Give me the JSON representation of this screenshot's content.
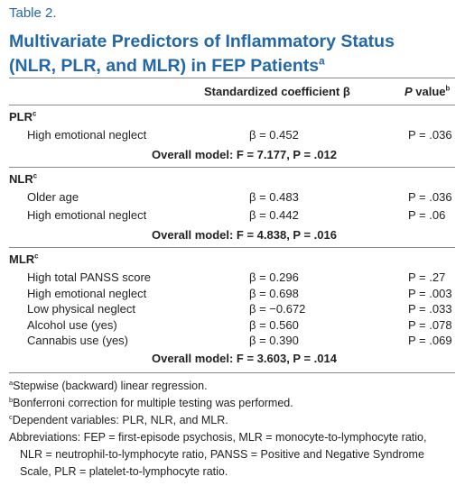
{
  "header": {
    "label": "Table 2.",
    "title": "Multivariate Predictors of Inflammatory Status (NLR, PLR, and MLR) in FEP Patients",
    "title_sup": "a"
  },
  "table": {
    "columns": [
      {
        "text": "Standardized coefficient β"
      },
      {
        "lead": "P",
        "text": "value",
        "sup": "b"
      }
    ],
    "sections": [
      {
        "name": "PLR",
        "sup": "c",
        "rows": [
          {
            "label": "High emotional neglect",
            "beta": "β = 0.452",
            "p": "P = .036"
          }
        ],
        "overall": "Overall model: F = 7.177, P = .012"
      },
      {
        "name": "NLR",
        "sup": "c",
        "rows": [
          {
            "label": "Older age",
            "beta": "β = 0.483",
            "p": "P = .036"
          },
          {
            "label": "High emotional neglect",
            "beta": "β = 0.442",
            "p": "P = .06"
          }
        ],
        "overall": "Overall model: F = 4.838, P = .016"
      },
      {
        "name": "MLR",
        "sup": "c",
        "rows": [
          {
            "label": "High total PANSS score",
            "beta": "β = 0.296",
            "p": "P = .27"
          },
          {
            "label": "High emotional neglect",
            "beta": "β = 0.698",
            "p": "P = .003"
          },
          {
            "label": "Low physical neglect",
            "beta": "β = −0.672",
            "p": "P = .033"
          },
          {
            "label": "Alcohol use (yes)",
            "beta": "β = 0.560",
            "p": "P = .078"
          },
          {
            "label": "Cannabis use (yes)",
            "beta": "β = 0.390",
            "p": "P = .069"
          }
        ],
        "overall": "Overall model: F = 3.603, P = .014"
      }
    ]
  },
  "footnotes": [
    {
      "sup": "a",
      "text": "Stepwise (backward) linear regression."
    },
    {
      "sup": "b",
      "text": "Bonferroni correction for multiple testing was performed."
    },
    {
      "sup": "c",
      "text": "Dependent variables: PLR, NLR, and MLR."
    },
    {
      "text": "Abbreviations: FEP = first-episode psychosis, MLR = monocyte-to-lymphocyte ratio, NLR = neutrophil-to-lymphocyte ratio, PANSS = Positive and Negative Syndrome Scale, PLR = platelet-to-lymphocyte ratio."
    }
  ]
}
